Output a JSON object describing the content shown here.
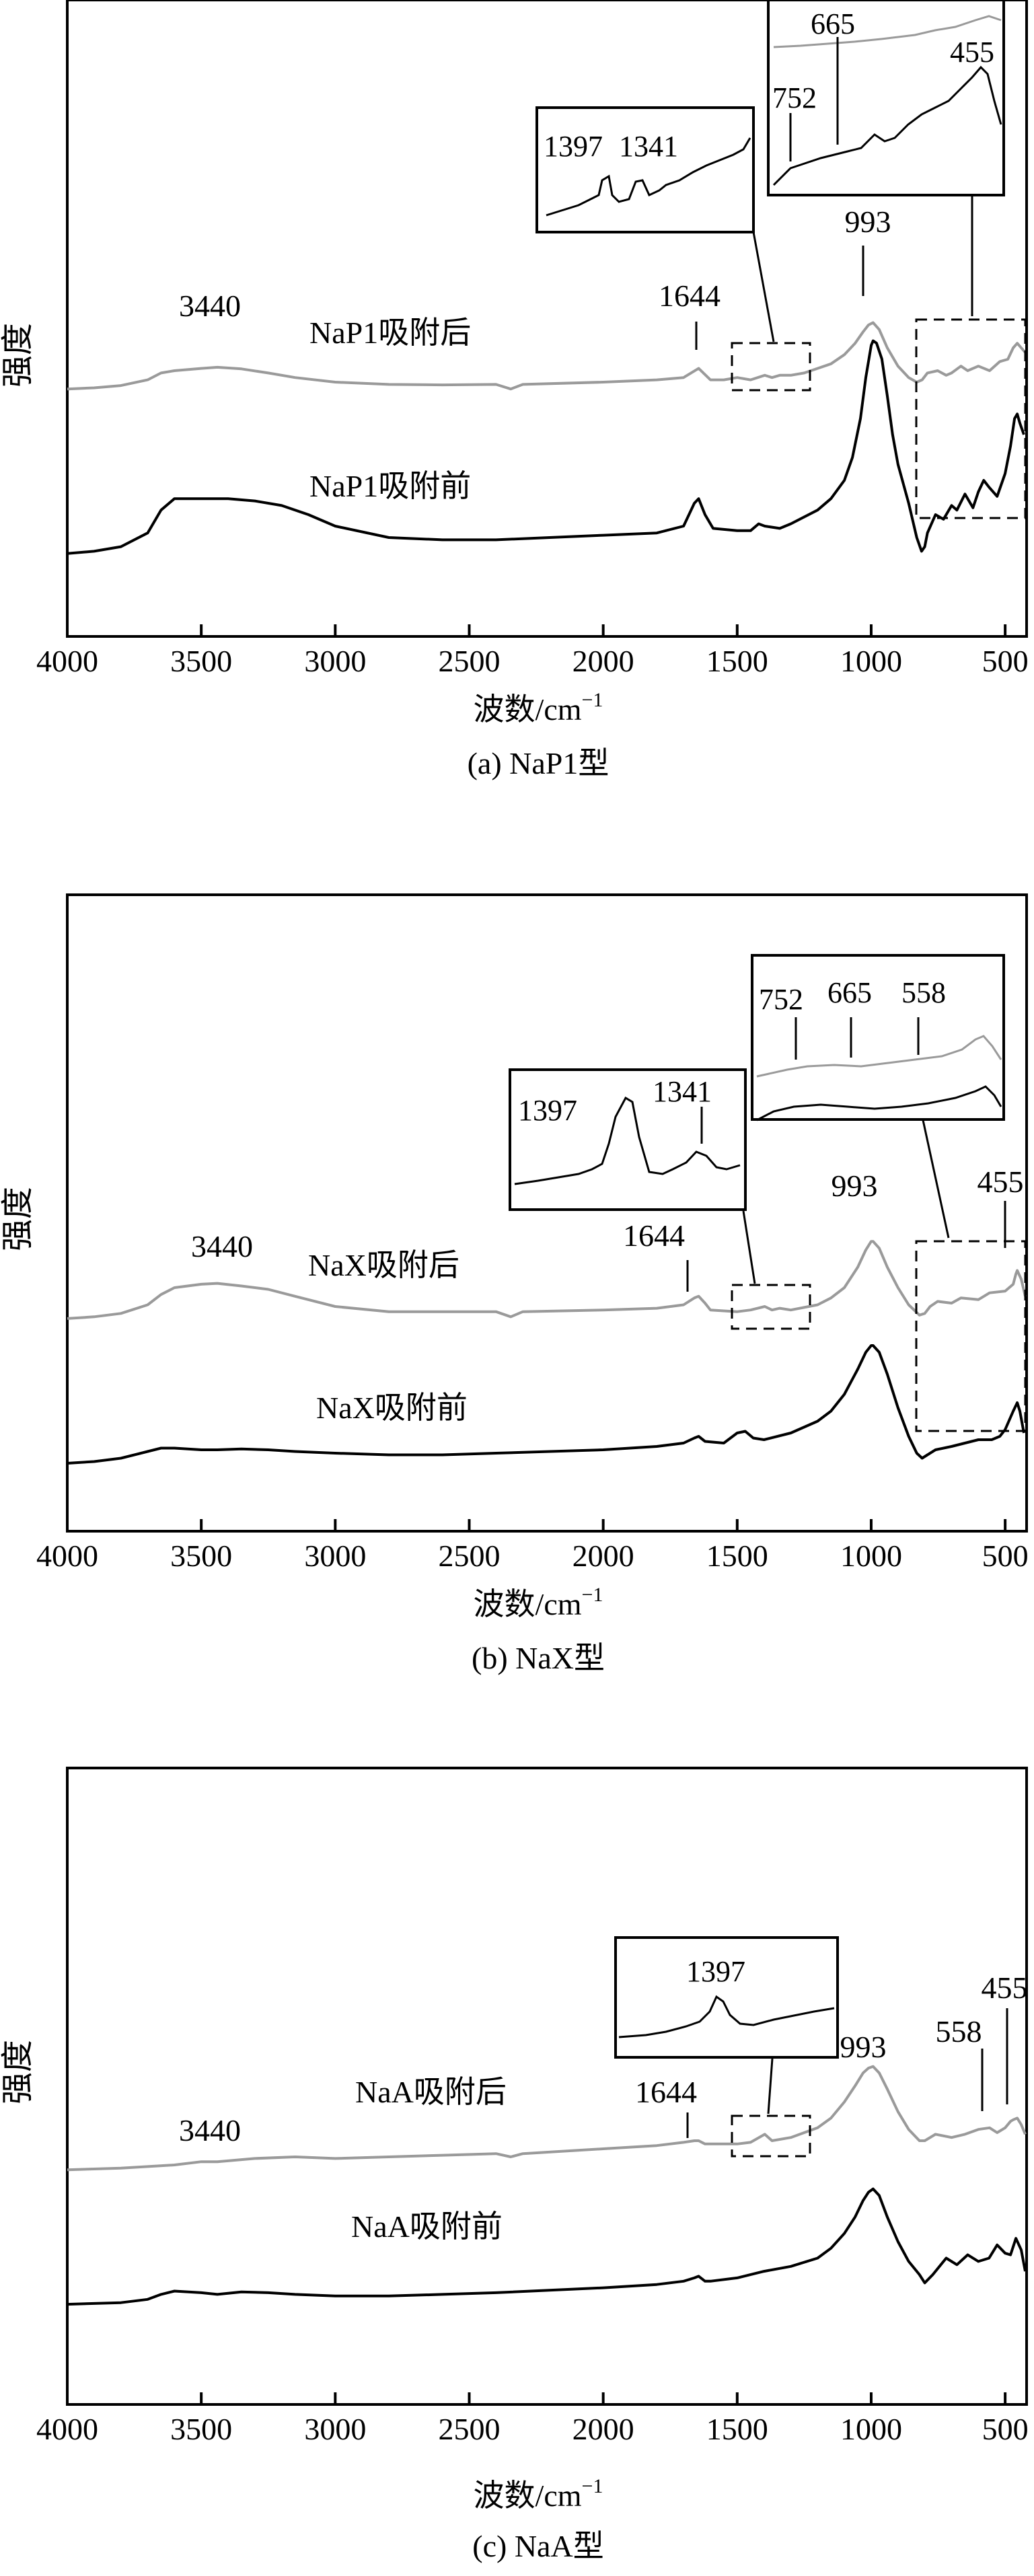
{
  "common": {
    "ylabel": "强度",
    "xlabel_main": "波数/cm",
    "xlabel_sup": "−1",
    "x_tick_labels": [
      "4000",
      "3500",
      "3000",
      "2500",
      "2000",
      "1500",
      "1000",
      "500"
    ],
    "xlim": [
      4000,
      420
    ],
    "y_axis": "intensity (arbitrary, no ticks)",
    "grid": false,
    "colors": {
      "after": "#9a9a9a",
      "before": "#000000"
    }
  },
  "chart_data": [
    {
      "type": "line",
      "caption": "(a) NaP1型",
      "xlabel": "波数/cm⁻¹",
      "ylabel": "强度",
      "xlim": [
        4000,
        420
      ],
      "series": [
        {
          "name": "NaP1吸附后",
          "x": [
            4000,
            3900,
            3800,
            3700,
            3650,
            3600,
            3500,
            3440,
            3350,
            3250,
            3150,
            3000,
            2800,
            2600,
            2400,
            2345,
            2300,
            2000,
            1800,
            1700,
            1644,
            1600,
            1550,
            1500,
            1450,
            1397,
            1370,
            1341,
            1300,
            1250,
            1200,
            1150,
            1100,
            1060,
            1030,
            1010,
            993,
            970,
            940,
            900,
            860,
            830,
            810,
            790,
            752,
            720,
            700,
            665,
            640,
            600,
            558,
            520,
            490,
            470,
            455,
            440,
            425
          ],
          "y": [
            0.02,
            0.025,
            0.035,
            0.06,
            0.09,
            0.1,
            0.11,
            0.115,
            0.108,
            0.09,
            0.07,
            0.05,
            0.04,
            0.038,
            0.04,
            0.02,
            0.04,
            0.05,
            0.06,
            0.07,
            0.11,
            0.06,
            0.06,
            0.07,
            0.06,
            0.08,
            0.07,
            0.08,
            0.08,
            0.09,
            0.11,
            0.13,
            0.17,
            0.22,
            0.27,
            0.3,
            0.31,
            0.28,
            0.2,
            0.12,
            0.07,
            0.05,
            0.06,
            0.09,
            0.1,
            0.08,
            0.09,
            0.12,
            0.1,
            0.12,
            0.1,
            0.14,
            0.15,
            0.2,
            0.22,
            0.2,
            0.18
          ]
        },
        {
          "name": "NaP1吸附前",
          "x": [
            4000,
            3900,
            3800,
            3700,
            3650,
            3600,
            3500,
            3400,
            3300,
            3200,
            3100,
            3000,
            2800,
            2600,
            2400,
            2200,
            2000,
            1800,
            1700,
            1660,
            1644,
            1620,
            1590,
            1500,
            1450,
            1420,
            1397,
            1341,
            1300,
            1200,
            1150,
            1100,
            1070,
            1040,
            1020,
            1000,
            993,
            980,
            960,
            940,
            920,
            900,
            860,
            830,
            812,
            800,
            790,
            760,
            730,
            700,
            680,
            650,
            620,
            600,
            580,
            560,
            530,
            500,
            480,
            465,
            455,
            445,
            430
          ],
          "y": [
            0.03,
            0.04,
            0.06,
            0.12,
            0.22,
            0.27,
            0.27,
            0.27,
            0.26,
            0.24,
            0.2,
            0.15,
            0.1,
            0.09,
            0.09,
            0.1,
            0.11,
            0.12,
            0.15,
            0.25,
            0.27,
            0.2,
            0.14,
            0.13,
            0.13,
            0.16,
            0.15,
            0.14,
            0.16,
            0.22,
            0.27,
            0.35,
            0.45,
            0.62,
            0.8,
            0.94,
            0.96,
            0.95,
            0.88,
            0.72,
            0.55,
            0.42,
            0.25,
            0.1,
            0.04,
            0.06,
            0.12,
            0.2,
            0.18,
            0.24,
            0.22,
            0.29,
            0.23,
            0.3,
            0.35,
            0.32,
            0.28,
            0.38,
            0.5,
            0.62,
            0.64,
            0.6,
            0.55
          ]
        }
      ],
      "annotations": [
        "3440",
        "1644",
        "993",
        "1397",
        "1341",
        "752",
        "665",
        "455"
      ]
    },
    {
      "type": "line",
      "caption": "(b) NaX型",
      "xlabel": "波数/cm⁻¹",
      "ylabel": "强度",
      "xlim": [
        4000,
        420
      ],
      "series": [
        {
          "name": "NaX吸附后",
          "x": [
            4000,
            3900,
            3800,
            3700,
            3650,
            3600,
            3500,
            3440,
            3350,
            3250,
            3150,
            3000,
            2800,
            2600,
            2400,
            2345,
            2300,
            2000,
            1800,
            1700,
            1660,
            1644,
            1620,
            1600,
            1500,
            1450,
            1397,
            1370,
            1341,
            1300,
            1200,
            1150,
            1100,
            1050,
            1020,
            1000,
            993,
            970,
            940,
            900,
            860,
            820,
            800,
            780,
            752,
            700,
            665,
            600,
            558,
            500,
            470,
            460,
            455,
            440,
            425
          ],
          "y": [
            0.02,
            0.03,
            0.05,
            0.1,
            0.16,
            0.2,
            0.22,
            0.225,
            0.21,
            0.19,
            0.15,
            0.09,
            0.06,
            0.06,
            0.06,
            0.03,
            0.06,
            0.07,
            0.08,
            0.1,
            0.14,
            0.15,
            0.11,
            0.07,
            0.06,
            0.07,
            0.09,
            0.07,
            0.08,
            0.07,
            0.1,
            0.14,
            0.2,
            0.32,
            0.42,
            0.47,
            0.47,
            0.43,
            0.32,
            0.2,
            0.1,
            0.04,
            0.05,
            0.09,
            0.12,
            0.11,
            0.14,
            0.13,
            0.17,
            0.18,
            0.22,
            0.28,
            0.3,
            0.25,
            0.15
          ]
        },
        {
          "name": "NaX吸附前",
          "x": [
            4000,
            3900,
            3800,
            3700,
            3650,
            3600,
            3500,
            3440,
            3350,
            3250,
            3150,
            3000,
            2800,
            2600,
            2400,
            2000,
            1800,
            1700,
            1660,
            1644,
            1620,
            1550,
            1500,
            1470,
            1440,
            1400,
            1300,
            1200,
            1150,
            1100,
            1050,
            1020,
            1000,
            993,
            970,
            940,
            900,
            860,
            830,
            810,
            790,
            760,
            700,
            650,
            600,
            550,
            520,
            500,
            470,
            455,
            445,
            430
          ],
          "y": [
            0.02,
            0.03,
            0.05,
            0.09,
            0.11,
            0.11,
            0.1,
            0.1,
            0.105,
            0.1,
            0.09,
            0.08,
            0.07,
            0.07,
            0.08,
            0.1,
            0.12,
            0.14,
            0.17,
            0.18,
            0.15,
            0.14,
            0.2,
            0.21,
            0.17,
            0.16,
            0.2,
            0.27,
            0.33,
            0.43,
            0.58,
            0.68,
            0.72,
            0.72,
            0.68,
            0.55,
            0.35,
            0.18,
            0.08,
            0.05,
            0.07,
            0.1,
            0.12,
            0.14,
            0.16,
            0.16,
            0.18,
            0.22,
            0.33,
            0.38,
            0.33,
            0.2
          ]
        }
      ],
      "annotations": [
        "3440",
        "1644",
        "993",
        "1397",
        "1341",
        "752",
        "665",
        "558",
        "455"
      ]
    },
    {
      "type": "line",
      "caption": "(c) NaA型",
      "xlabel": "波数/cm⁻¹",
      "ylabel": "强度",
      "xlim": [
        4000,
        420
      ],
      "series": [
        {
          "name": "NaA吸附后",
          "x": [
            4000,
            3800,
            3600,
            3500,
            3440,
            3300,
            3150,
            3000,
            2800,
            2600,
            2400,
            2345,
            2300,
            2000,
            1800,
            1700,
            1660,
            1644,
            1620,
            1500,
            1450,
            1397,
            1370,
            1300,
            1200,
            1150,
            1100,
            1060,
            1030,
            1010,
            993,
            970,
            940,
            900,
            860,
            820,
            800,
            760,
            700,
            650,
            600,
            558,
            530,
            500,
            480,
            470,
            455,
            440,
            425
          ],
          "y": [
            0.02,
            0.03,
            0.05,
            0.07,
            0.07,
            0.09,
            0.1,
            0.09,
            0.1,
            0.11,
            0.12,
            0.1,
            0.12,
            0.15,
            0.17,
            0.19,
            0.2,
            0.2,
            0.18,
            0.18,
            0.19,
            0.24,
            0.2,
            0.22,
            0.28,
            0.34,
            0.44,
            0.54,
            0.62,
            0.65,
            0.66,
            0.62,
            0.52,
            0.38,
            0.27,
            0.2,
            0.2,
            0.24,
            0.22,
            0.24,
            0.27,
            0.28,
            0.25,
            0.28,
            0.32,
            0.33,
            0.34,
            0.3,
            0.24
          ]
        },
        {
          "name": "NaA吸附前",
          "x": [
            4000,
            3800,
            3700,
            3650,
            3600,
            3500,
            3440,
            3350,
            3250,
            3150,
            3000,
            2800,
            2600,
            2400,
            2000,
            1800,
            1700,
            1660,
            1644,
            1620,
            1600,
            1500,
            1400,
            1300,
            1200,
            1150,
            1100,
            1060,
            1030,
            1010,
            993,
            970,
            940,
            900,
            860,
            820,
            800,
            770,
            720,
            680,
            640,
            600,
            560,
            530,
            500,
            480,
            460,
            440,
            425
          ],
          "y": [
            0.02,
            0.03,
            0.05,
            0.08,
            0.1,
            0.09,
            0.08,
            0.095,
            0.09,
            0.08,
            0.07,
            0.07,
            0.08,
            0.09,
            0.12,
            0.14,
            0.16,
            0.18,
            0.19,
            0.16,
            0.16,
            0.18,
            0.22,
            0.25,
            0.3,
            0.36,
            0.45,
            0.55,
            0.65,
            0.7,
            0.72,
            0.68,
            0.55,
            0.4,
            0.28,
            0.2,
            0.15,
            0.2,
            0.3,
            0.26,
            0.32,
            0.28,
            0.3,
            0.38,
            0.33,
            0.32,
            0.42,
            0.35,
            0.22
          ]
        }
      ],
      "annotations": [
        "3440",
        "1644",
        "993",
        "1397",
        "558",
        "455"
      ]
    }
  ]
}
